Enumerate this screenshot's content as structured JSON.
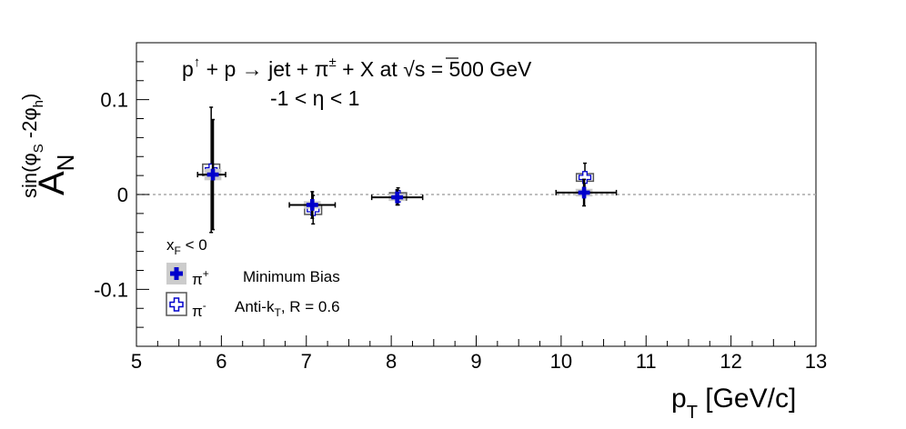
{
  "chart_data": {
    "type": "scatter",
    "title_line1_main": "p",
    "title_line1_sup": "↑",
    "title_line1_rest": " + p → jet + π",
    "title_line1_pm": "±",
    "title_line1_end": " + X at  √s = 500 GeV",
    "title_line2": "-1 < η < 1",
    "xlabel_main": "p",
    "xlabel_sub": "T",
    "xlabel_rest": " [GeV/c]",
    "ylabel_main": "A",
    "ylabel_sub": "N",
    "ylabel_sup_prefix": "sin(φ",
    "ylabel_sup_s": "S",
    "ylabel_sup_mid": " -2φ",
    "ylabel_sup_h": "h",
    "ylabel_sup_end": ")",
    "xlim": [
      5,
      13
    ],
    "ylim": [
      -0.16,
      0.16
    ],
    "xticks": [
      "5",
      "6",
      "7",
      "8",
      "9",
      "10",
      "11",
      "12",
      "13"
    ],
    "yticks": [
      {
        "value": 0.1,
        "label": "0.1"
      },
      {
        "value": 0,
        "label": "0"
      },
      {
        "value": -0.1,
        "label": "-0.1"
      }
    ],
    "zero_line": true,
    "legend": {
      "header_main": "x",
      "header_sub": "F",
      "header_rest": " < 0",
      "entries": [
        {
          "main": "π",
          "sup": "+",
          "note": "Minimum Bias"
        },
        {
          "main": "π",
          "sup": "-",
          "note_main": "Anti-k",
          "note_sub": "T",
          "note_rest": ", R = 0.6"
        }
      ]
    },
    "series": [
      {
        "name": "π+",
        "marker": "filled-cross",
        "color": "#0000cc",
        "points": [
          {
            "x": 5.9,
            "y": 0.021,
            "xerr_lo": 0.18,
            "xerr_hi": 0.15,
            "yerr": 0.058,
            "sys": 0.006
          },
          {
            "x": 7.07,
            "y": -0.011,
            "xerr_lo": 0.27,
            "xerr_hi": 0.27,
            "yerr": 0.014,
            "sys": 0.004
          },
          {
            "x": 8.07,
            "y": -0.003,
            "xerr_lo": 0.3,
            "xerr_hi": 0.3,
            "yerr": 0.008,
            "sys": 0.003
          },
          {
            "x": 10.27,
            "y": 0.002,
            "xerr_lo": 0.33,
            "xerr_hi": 0.38,
            "yerr": 0.014,
            "sys": 0.004
          }
        ]
      },
      {
        "name": "π-",
        "marker": "open-cross",
        "color": "#0000cc",
        "points": [
          {
            "x": 5.88,
            "y": 0.026,
            "xerr_lo": 0.0,
            "xerr_hi": 0.0,
            "yerr": 0.066,
            "sys": 0.006
          },
          {
            "x": 7.08,
            "y": -0.016,
            "xerr_lo": 0.0,
            "xerr_hi": 0.0,
            "yerr": 0.015,
            "sys": 0.005
          },
          {
            "x": 8.08,
            "y": -0.002,
            "xerr_lo": 0.0,
            "xerr_hi": 0.0,
            "yerr": 0.009,
            "sys": 0.003
          },
          {
            "x": 10.28,
            "y": 0.018,
            "xerr_lo": 0.0,
            "xerr_hi": 0.0,
            "yerr": 0.015,
            "sys": 0.004
          }
        ]
      }
    ]
  }
}
